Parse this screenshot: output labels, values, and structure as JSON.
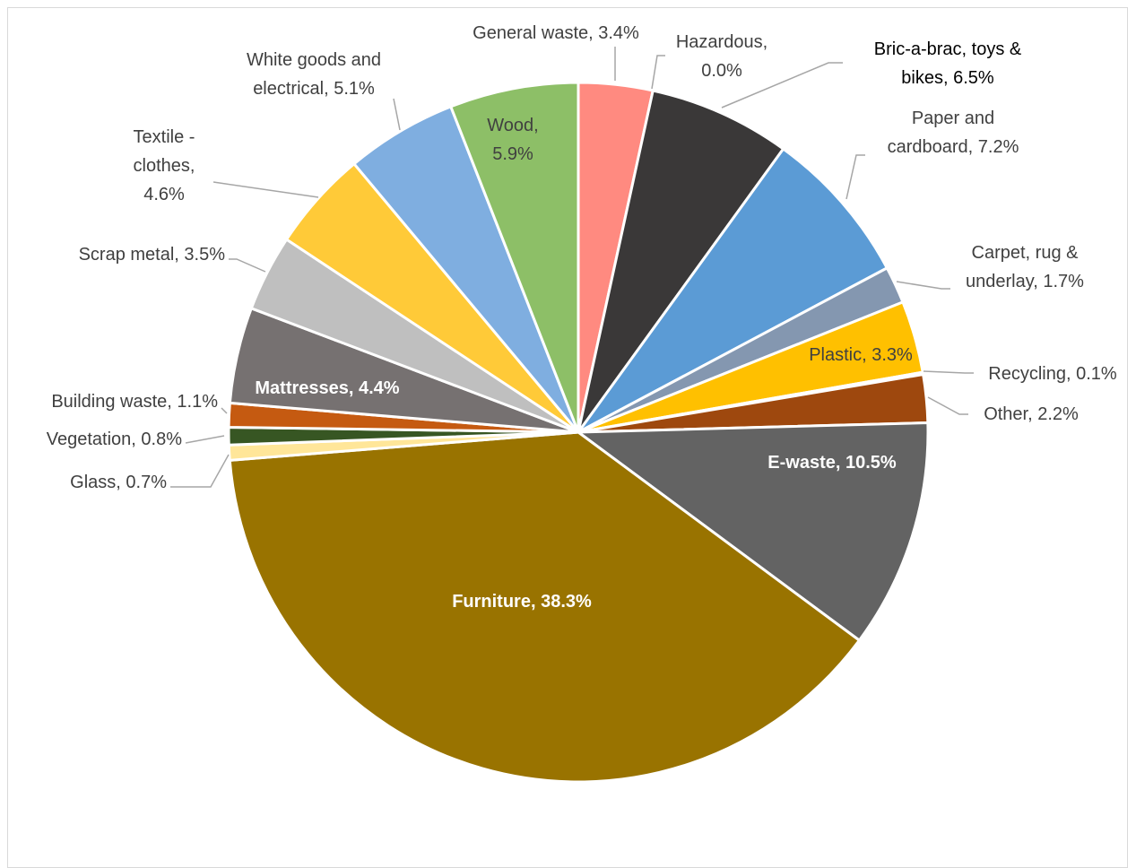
{
  "chart_data": {
    "type": "pie",
    "title": "",
    "start_angle_deg": 0,
    "direction": "clockwise",
    "slices": [
      {
        "key": "general_waste",
        "label": "General waste, 3.4%",
        "lines": [
          "General waste, 3.4%"
        ],
        "value": 3.4,
        "color": "#FF8A80",
        "label_color": "#404040",
        "bold": false,
        "label_inside": false
      },
      {
        "key": "hazardous",
        "label": "Hazardous, 0.0%",
        "lines": [
          "Hazardous,",
          "0.0%"
        ],
        "value": 0.0,
        "color": "#FF8A80",
        "label_color": "#404040",
        "bold": false,
        "label_inside": false
      },
      {
        "key": "bric_a_brac",
        "label": "Bric-a-brac, toys & bikes, 6.5%",
        "lines": [
          "Bric-a-brac, toys &",
          "bikes, 6.5%"
        ],
        "value": 6.5,
        "color": "#3A3838",
        "label_color": "#000000",
        "bold": false,
        "label_inside": false
      },
      {
        "key": "paper",
        "label": "Paper and cardboard, 7.2%",
        "lines": [
          "Paper and",
          "cardboard, 7.2%"
        ],
        "value": 7.2,
        "color": "#5B9BD5",
        "label_color": "#404040",
        "bold": false,
        "label_inside": false
      },
      {
        "key": "carpet",
        "label": "Carpet, rug & underlay, 1.7%",
        "lines": [
          "Carpet, rug &",
          "underlay, 1.7%"
        ],
        "value": 1.7,
        "color": "#8497B0",
        "label_color": "#404040",
        "bold": false,
        "label_inside": false
      },
      {
        "key": "plastic",
        "label": "Plastic, 3.3%",
        "lines": [
          "Plastic, 3.3%"
        ],
        "value": 3.3,
        "color": "#FFC000",
        "label_color": "#404040",
        "bold": false,
        "label_inside": true
      },
      {
        "key": "recycling",
        "label": "Recycling, 0.1%",
        "lines": [
          "Recycling, 0.1%"
        ],
        "value": 0.1,
        "color": "#ED7D31",
        "label_color": "#404040",
        "bold": false,
        "label_inside": false
      },
      {
        "key": "other",
        "label": "Other, 2.2%",
        "lines": [
          "Other, 2.2%"
        ],
        "value": 2.2,
        "color": "#9E480E",
        "label_color": "#404040",
        "bold": false,
        "label_inside": false
      },
      {
        "key": "e_waste",
        "label": "E-waste, 10.5%",
        "lines": [
          "E-waste, 10.5%"
        ],
        "value": 10.5,
        "color": "#636363",
        "label_color": "#ffffff",
        "bold": true,
        "label_inside": true
      },
      {
        "key": "furniture",
        "label": "Furniture, 38.3%",
        "lines": [
          "Furniture, 38.3%"
        ],
        "value": 38.3,
        "color": "#997300",
        "label_color": "#ffffff",
        "bold": true,
        "label_inside": true
      },
      {
        "key": "glass",
        "label": "Glass, 0.7%",
        "lines": [
          "Glass, 0.7%"
        ],
        "value": 0.7,
        "color": "#FFE699",
        "label_color": "#404040",
        "bold": false,
        "label_inside": false
      },
      {
        "key": "vegetation",
        "label": "Vegetation, 0.8%",
        "lines": [
          "Vegetation, 0.8%"
        ],
        "value": 0.8,
        "color": "#375623",
        "label_color": "#404040",
        "bold": false,
        "label_inside": false
      },
      {
        "key": "building",
        "label": "Building waste, 1.1%",
        "lines": [
          "Building waste, 1.1%"
        ],
        "value": 1.1,
        "color": "#C55A11",
        "label_color": "#404040",
        "bold": false,
        "label_inside": false
      },
      {
        "key": "mattresses",
        "label": "Mattresses, 4.4%",
        "lines": [
          "Mattresses, 4.4%"
        ],
        "value": 4.4,
        "color": "#767171",
        "label_color": "#ffffff",
        "bold": true,
        "label_inside": true
      },
      {
        "key": "scrap_metal",
        "label": "Scrap metal, 3.5%",
        "lines": [
          "Scrap metal, 3.5%"
        ],
        "value": 3.5,
        "color": "#BFBFBF",
        "label_color": "#404040",
        "bold": false,
        "label_inside": false
      },
      {
        "key": "textile",
        "label": "Textile - clothes, 4.6%",
        "lines": [
          "Textile -",
          "clothes,",
          "4.6%"
        ],
        "value": 4.6,
        "color": "#FFCA38",
        "label_color": "#404040",
        "bold": false,
        "label_inside": false
      },
      {
        "key": "white_goods",
        "label": "White goods and electrical, 5.1%",
        "lines": [
          "White goods and",
          "electrical, 5.1%"
        ],
        "value": 5.1,
        "color": "#7FAEE0",
        "label_color": "#404040",
        "bold": false,
        "label_inside": false
      },
      {
        "key": "wood",
        "label": "Wood, 5.9%",
        "lines": [
          "Wood,",
          "5.9%"
        ],
        "value": 5.9,
        "color": "#8DBF67",
        "label_color": "#404040",
        "bold": false,
        "label_inside": true
      }
    ]
  }
}
